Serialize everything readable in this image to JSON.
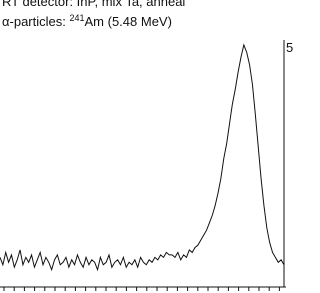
{
  "chart_data": {
    "type": "line",
    "annotations": [
      "RT detector: InP, mix Ta, anneal",
      "α-particles: ",
      "241",
      "Am (5.48 MeV)",
      "5"
    ],
    "color": "#111111",
    "ylim": [
      0,
      100
    ],
    "values": [
      12,
      9,
      14,
      10,
      13,
      8,
      11,
      15,
      9,
      12,
      10,
      13,
      8,
      11,
      14,
      9,
      12,
      10,
      7,
      11,
      13,
      9,
      10,
      12,
      8,
      11,
      9,
      13,
      10,
      8,
      12,
      9,
      11,
      10,
      7,
      12,
      9,
      10,
      13,
      8,
      10,
      11,
      9,
      12,
      8,
      10,
      9,
      11,
      8,
      12,
      10,
      9,
      11,
      10,
      12,
      11,
      13,
      12,
      14,
      13,
      13,
      12,
      14,
      11,
      13,
      12,
      15,
      14,
      16,
      17,
      19,
      21,
      23,
      26,
      29,
      33,
      38,
      44,
      52,
      58,
      66,
      74,
      80,
      87,
      93,
      98,
      95,
      90,
      82,
      70,
      57,
      44,
      33,
      24,
      18,
      14,
      12,
      10,
      11,
      9
    ]
  }
}
